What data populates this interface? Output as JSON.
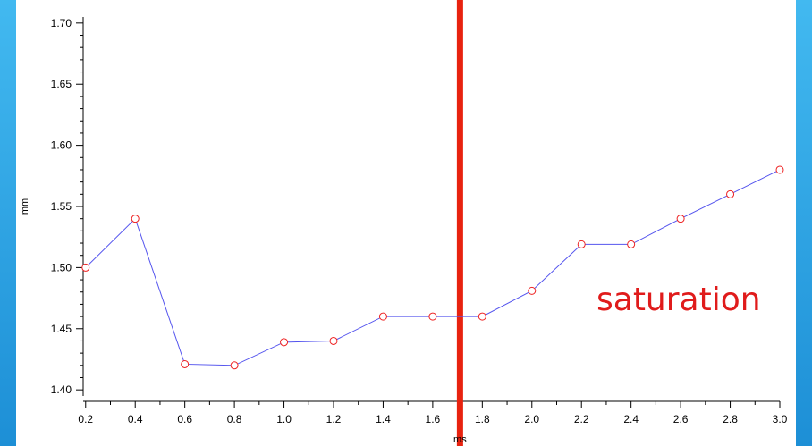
{
  "chart_data": {
    "type": "line",
    "xlabel": "ms",
    "ylabel": "mm",
    "xlim": [
      0.19,
      3.0
    ],
    "ylim": [
      1.395,
      1.705
    ],
    "x_ticks": [
      "0.2",
      "0.4",
      "0.6",
      "0.8",
      "1.0",
      "1.2",
      "1.4",
      "1.6",
      "1.8",
      "2.0",
      "2.2",
      "2.4",
      "2.6",
      "2.8",
      "3.0"
    ],
    "y_ticks": [
      "1.40",
      "1.45",
      "1.50",
      "1.55",
      "1.60",
      "1.65",
      "1.70"
    ],
    "series": [
      {
        "x": [
          0.2,
          0.4,
          0.6,
          0.8,
          1.0,
          1.2,
          1.4,
          1.6,
          1.8,
          2.0,
          2.2,
          2.4,
          2.6,
          2.8,
          3.0
        ],
        "y": [
          1.5,
          1.54,
          1.421,
          1.42,
          1.439,
          1.44,
          1.46,
          1.46,
          1.46,
          1.481,
          1.519,
          1.519,
          1.54,
          1.56,
          1.58
        ]
      }
    ],
    "threshold_line": {
      "x": 1.71,
      "color": "#e8220f"
    },
    "annotation": {
      "text": "saturation",
      "color": "#e01b1b"
    },
    "colors": {
      "line": "#5555ee",
      "marker": "#ee2222"
    },
    "grid": false
  }
}
